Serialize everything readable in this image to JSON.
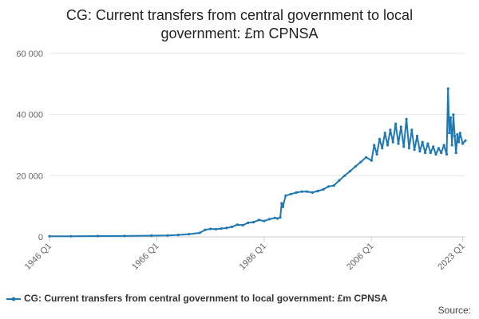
{
  "chart_data": {
    "type": "line",
    "title": "CG: Current transfers from central government to local government: £m CPNSA",
    "xlabel": "",
    "ylabel": "",
    "x_tick_labels": [
      "1946 Q1",
      "1966 Q1",
      "1986 Q1",
      "2006 Q1",
      "2023 Q1"
    ],
    "y_tick_labels": [
      "0",
      "20 000",
      "40 000",
      "60 000"
    ],
    "y_ticks": [
      0,
      20000,
      40000,
      60000
    ],
    "ylim": [
      0,
      60000
    ],
    "xlim": [
      1946,
      2023.5
    ],
    "grid": true,
    "legend_position": "bottom-left",
    "series": [
      {
        "name": "CG: Current transfers from central government to local government: £m CPNSA",
        "color": "#1f78b4",
        "x": [
          1946,
          1950,
          1955,
          1960,
          1965,
          1968,
          1970,
          1972,
          1974,
          1975,
          1976,
          1977,
          1978,
          1979,
          1980,
          1981,
          1982,
          1983,
          1984,
          1985,
          1986,
          1987,
          1988,
          1988.5,
          1989,
          1989.25,
          1989.5,
          1990,
          1991,
          1992,
          1993,
          1994,
          1995,
          1996,
          1997,
          1998,
          1999,
          2000,
          2001,
          2002,
          2003,
          2004,
          2005,
          2006,
          2006.5,
          2007,
          2007.5,
          2008,
          2008.5,
          2009,
          2009.5,
          2010,
          2010.5,
          2011,
          2011.5,
          2012,
          2012.5,
          2013,
          2013.5,
          2014,
          2014.5,
          2015,
          2015.5,
          2016,
          2016.5,
          2017,
          2017.5,
          2018,
          2018.5,
          2019,
          2019.5,
          2020,
          2020.25,
          2020.5,
          2020.75,
          2021,
          2021.25,
          2021.5,
          2021.75,
          2022,
          2022.25,
          2022.5,
          2023,
          2023.5
        ],
        "values": [
          200,
          220,
          260,
          300,
          380,
          480,
          620,
          900,
          1300,
          2300,
          2600,
          2500,
          2700,
          2900,
          3300,
          4000,
          3800,
          4600,
          4800,
          5500,
          5200,
          5800,
          6200,
          6000,
          6400,
          11000,
          9800,
          13500,
          14000,
          14500,
          14800,
          14800,
          14500,
          15000,
          15500,
          16500,
          16800,
          18500,
          20000,
          21500,
          23000,
          24500,
          26000,
          25000,
          30000,
          27000,
          32000,
          29000,
          34000,
          30000,
          35000,
          31000,
          37000,
          30500,
          36000,
          29500,
          38500,
          29000,
          35000,
          28500,
          33000,
          28000,
          31000,
          27500,
          30500,
          27500,
          29500,
          27000,
          29000,
          27500,
          30000,
          27000,
          48500,
          34000,
          39000,
          30000,
          40000,
          33000,
          27500,
          33500,
          31000,
          34000,
          30500,
          31500
        ]
      }
    ]
  },
  "legend": {
    "label": "CG: Current transfers from central government to local government: £m CPNSA"
  },
  "footer": {
    "source_label": "Source:"
  }
}
